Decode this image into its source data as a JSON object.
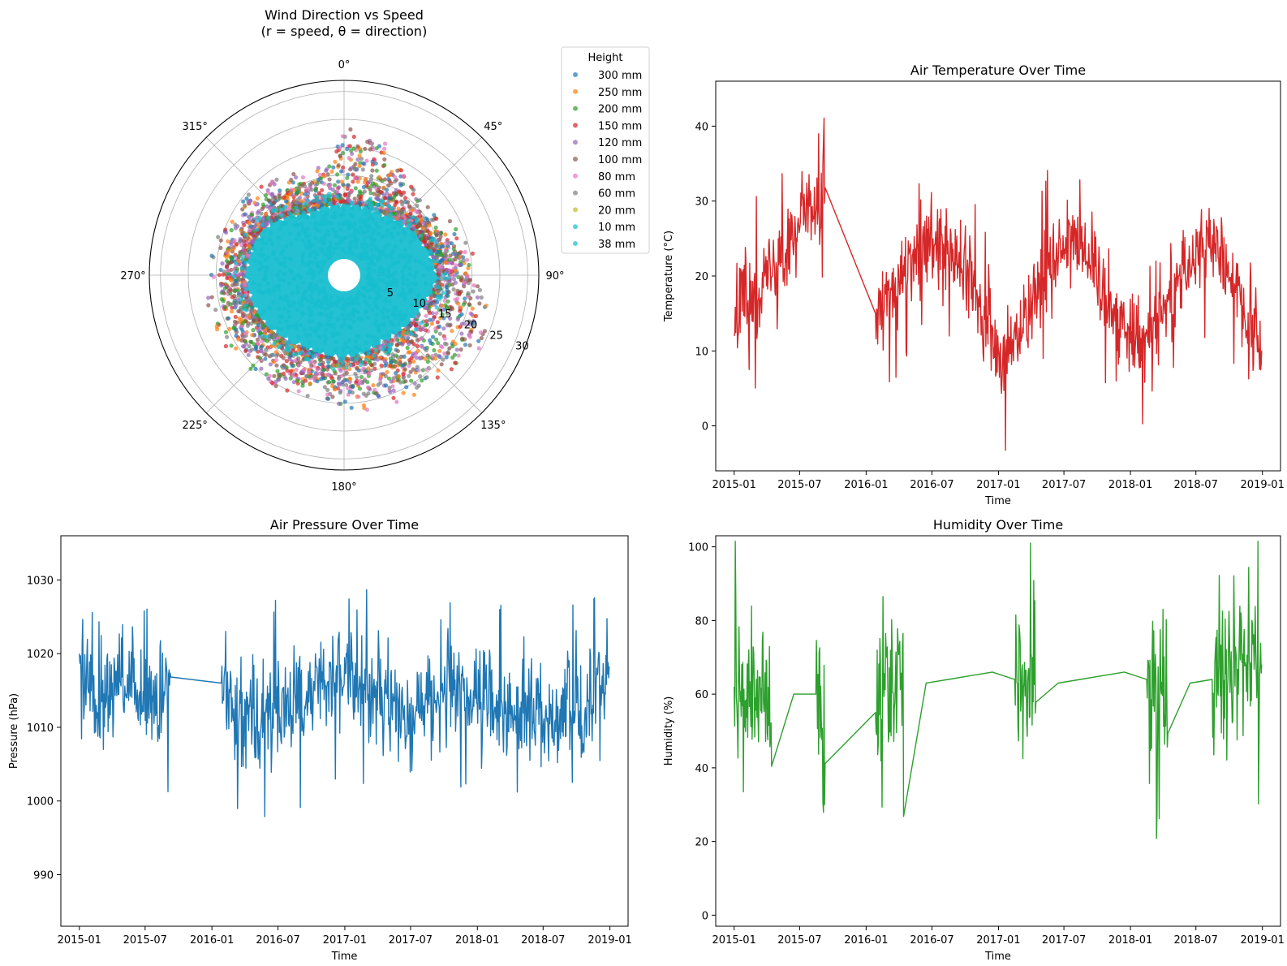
{
  "chart_data": [
    {
      "type": "scatter",
      "projection": "polar",
      "title": "Wind Direction vs Speed\n(r = speed, θ = direction)",
      "theta_direction": "clockwise",
      "theta_zero": "north",
      "theta_ticks": [
        "0°",
        "45°",
        "90°",
        "135°",
        "180°",
        "225°",
        "270°",
        "315°"
      ],
      "r_ticks": [
        "5",
        "10",
        "15",
        "20",
        "25",
        "30"
      ],
      "rlim": [
        -3,
        32
      ],
      "legend": {
        "title": "Height",
        "placement": "upper right, outside axes",
        "entries": [
          "300 mm",
          "250 mm",
          "200 mm",
          "150 mm",
          "120 mm",
          "100 mm",
          "80 mm",
          "60 mm",
          "20 mm",
          "10 mm",
          "38 mm"
        ]
      },
      "series": [
        {
          "name": "300 mm",
          "color": "#1f77b4"
        },
        {
          "name": "250 mm",
          "color": "#ff7f0e"
        },
        {
          "name": "200 mm",
          "color": "#2ca02c"
        },
        {
          "name": "150 mm",
          "color": "#d62728"
        },
        {
          "name": "120 mm",
          "color": "#9467bd"
        },
        {
          "name": "100 mm",
          "color": "#8c564b"
        },
        {
          "name": "80 mm",
          "color": "#e377c2"
        },
        {
          "name": "60 mm",
          "color": "#7f7f7f"
        },
        {
          "name": "20 mm",
          "color": "#bcbd22"
        },
        {
          "name": "10 mm",
          "color": "#17becf"
        },
        {
          "name": "38 mm",
          "color": "#17becf"
        }
      ],
      "envelope_max_speed": [
        {
          "deg": 0,
          "speed": 20
        },
        {
          "deg": 10,
          "speed": 21
        },
        {
          "deg": 20,
          "speed": 18
        },
        {
          "deg": 30,
          "speed": 16
        },
        {
          "deg": 45,
          "speed": 14
        },
        {
          "deg": 60,
          "speed": 15
        },
        {
          "deg": 75,
          "speed": 17
        },
        {
          "deg": 90,
          "speed": 19
        },
        {
          "deg": 105,
          "speed": 21
        },
        {
          "deg": 120,
          "speed": 22
        },
        {
          "deg": 135,
          "speed": 19
        },
        {
          "deg": 150,
          "speed": 19
        },
        {
          "deg": 165,
          "speed": 19
        },
        {
          "deg": 180,
          "speed": 18
        },
        {
          "deg": 195,
          "speed": 17
        },
        {
          "deg": 210,
          "speed": 18
        },
        {
          "deg": 225,
          "speed": 18
        },
        {
          "deg": 240,
          "speed": 19
        },
        {
          "deg": 255,
          "speed": 19
        },
        {
          "deg": 270,
          "speed": 19
        },
        {
          "deg": 285,
          "speed": 18
        },
        {
          "deg": 300,
          "speed": 17
        },
        {
          "deg": 315,
          "speed": 17
        },
        {
          "deg": 330,
          "speed": 15
        },
        {
          "deg": 345,
          "speed": 14
        }
      ],
      "core_speed": [
        {
          "deg": 0,
          "speed": 10
        },
        {
          "deg": 30,
          "speed": 10
        },
        {
          "deg": 60,
          "speed": 12
        },
        {
          "deg": 90,
          "speed": 14
        },
        {
          "deg": 120,
          "speed": 12
        },
        {
          "deg": 150,
          "speed": 11
        },
        {
          "deg": 180,
          "speed": 12
        },
        {
          "deg": 210,
          "speed": 12
        },
        {
          "deg": 240,
          "speed": 14
        },
        {
          "deg": 270,
          "speed": 15
        },
        {
          "deg": 300,
          "speed": 14
        },
        {
          "deg": 330,
          "speed": 10
        }
      ]
    },
    {
      "type": "line",
      "title": "Air Temperature Over Time",
      "xlabel": "Time",
      "ylabel": "Temperature (°C)",
      "color": "#d62728",
      "x_ticks": [
        "2015-01",
        "2015-07",
        "2016-01",
        "2016-07",
        "2017-01",
        "2017-07",
        "2018-01",
        "2018-07",
        "2019-01"
      ],
      "y_ticks": [
        "0",
        "10",
        "20",
        "30",
        "40"
      ],
      "xlim": [
        "2014-11-11",
        "2019-02-20"
      ],
      "ylim": [
        -6,
        46
      ],
      "series": [
        {
          "points": [
            [
              "2015-01-01",
              12
            ],
            [
              "2015-01-20",
              18
            ],
            [
              "2015-02-15",
              17
            ],
            [
              "2015-03-15",
              19
            ],
            [
              "2015-04-15",
              21
            ],
            [
              "2015-05-15",
              24
            ],
            [
              "2015-06-15",
              27
            ],
            [
              "2015-07-15",
              28
            ],
            [
              "2015-08-15",
              30
            ],
            [
              "2015-09-05",
              28
            ],
            [
              "2015-09-10",
              34
            ],
            [
              "2016-01-27",
              15
            ],
            [
              "2016-03-01",
              17
            ],
            [
              "2016-04-01",
              18
            ],
            [
              "2016-05-01",
              21
            ],
            [
              "2016-06-01",
              23
            ],
            [
              "2016-07-15",
              24
            ],
            [
              "2016-08-15",
              23
            ],
            [
              "2016-09-15",
              22
            ],
            [
              "2016-10-15",
              19
            ],
            [
              "2016-11-15",
              15
            ],
            [
              "2016-12-15",
              11
            ],
            [
              "2017-01-10",
              8
            ],
            [
              "2017-02-10",
              11
            ],
            [
              "2017-03-15",
              15
            ],
            [
              "2017-04-15",
              18
            ],
            [
              "2017-05-15",
              21
            ],
            [
              "2017-06-15",
              24
            ],
            [
              "2017-07-15",
              26
            ],
            [
              "2017-08-15",
              24
            ],
            [
              "2017-09-15",
              22
            ],
            [
              "2017-10-15",
              19
            ],
            [
              "2017-11-15",
              15
            ],
            [
              "2017-12-15",
              13
            ],
            [
              "2018-01-15",
              12
            ],
            [
              "2018-02-15",
              12
            ],
            [
              "2018-03-15",
              14
            ],
            [
              "2018-04-15",
              17
            ],
            [
              "2018-05-15",
              20
            ],
            [
              "2018-06-15",
              22
            ],
            [
              "2018-07-15",
              24
            ],
            [
              "2018-08-15",
              24
            ],
            [
              "2018-09-15",
              22
            ],
            [
              "2018-10-05",
              20
            ],
            [
              "2018-10-20",
              18
            ],
            [
              "2018-11-15",
              14
            ],
            [
              "2018-12-15",
              11
            ],
            [
              "2018-12-31",
              9
            ]
          ],
          "amplitude": 5
        }
      ]
    },
    {
      "type": "line",
      "title": "Air Pressure Over Time",
      "xlabel": "Time",
      "ylabel": "Pressure (hPa)",
      "color": "#1f77b4",
      "x_ticks": [
        "2015-01",
        "2015-07",
        "2016-01",
        "2016-07",
        "2017-01",
        "2017-07",
        "2018-01",
        "2018-07",
        "2019-01"
      ],
      "y_ticks": [
        "990",
        "1000",
        "1010",
        "1020",
        "1030"
      ],
      "xlim": [
        "2014-11-11",
        "2019-02-20"
      ],
      "ylim": [
        983,
        1036
      ],
      "series": [
        {
          "points": [
            [
              "2015-01-01",
              1020
            ],
            [
              "2015-01-20",
              1018
            ],
            [
              "2015-02-15",
              1012
            ],
            [
              "2015-03-15",
              1015
            ],
            [
              "2015-04-15",
              1016
            ],
            [
              "2015-05-15",
              1015
            ],
            [
              "2015-06-15",
              1014
            ],
            [
              "2015-07-15",
              1013
            ],
            [
              "2015-08-15",
              1013
            ],
            [
              "2015-09-10",
              1016
            ],
            [
              "2016-01-27",
              1016
            ],
            [
              "2016-02-15",
              1015
            ],
            [
              "2016-03-15",
              1012
            ],
            [
              "2016-04-15",
              1012
            ],
            [
              "2016-05-15",
              1012
            ],
            [
              "2016-06-15",
              1012
            ],
            [
              "2016-07-15",
              1012
            ],
            [
              "2016-08-15",
              1013
            ],
            [
              "2016-09-15",
              1014
            ],
            [
              "2016-10-15",
              1016
            ],
            [
              "2016-11-15",
              1016
            ],
            [
              "2016-12-15",
              1018
            ],
            [
              "2017-01-15",
              1016
            ],
            [
              "2017-02-15",
              1015
            ],
            [
              "2017-03-15",
              1014
            ],
            [
              "2017-04-15",
              1013
            ],
            [
              "2017-05-15",
              1013
            ],
            [
              "2017-06-15",
              1012
            ],
            [
              "2017-07-15",
              1012
            ],
            [
              "2017-08-15",
              1013
            ],
            [
              "2017-09-15",
              1014
            ],
            [
              "2017-10-15",
              1015
            ],
            [
              "2017-11-15",
              1014
            ],
            [
              "2017-12-15",
              1013
            ],
            [
              "2018-01-15",
              1014
            ],
            [
              "2018-02-15",
              1013
            ],
            [
              "2018-03-15",
              1012
            ],
            [
              "2018-04-15",
              1012
            ],
            [
              "2018-05-15",
              1013
            ],
            [
              "2018-06-15",
              1012
            ],
            [
              "2018-07-15",
              1012
            ],
            [
              "2018-08-15",
              1012
            ],
            [
              "2018-09-15",
              1013
            ],
            [
              "2018-10-05",
              1012
            ],
            [
              "2018-10-20",
              1010
            ],
            [
              "2018-11-15",
              1015
            ],
            [
              "2018-12-15",
              1017
            ],
            [
              "2018-12-31",
              1018
            ]
          ],
          "amplitude": 6
        }
      ]
    },
    {
      "type": "line",
      "title": "Humidity Over Time",
      "xlabel": "Time",
      "ylabel": "Humidity (%)",
      "color": "#2ca02c",
      "x_ticks": [
        "2015-01",
        "2015-07",
        "2016-01",
        "2016-07",
        "2017-01",
        "2017-07",
        "2018-01",
        "2018-07",
        "2019-01"
      ],
      "y_ticks": [
        "0",
        "20",
        "40",
        "60",
        "80",
        "100"
      ],
      "xlim": [
        "2014-11-11",
        "2019-02-20"
      ],
      "ylim": [
        -3,
        103
      ],
      "series": [
        {
          "points": [
            [
              "2015-01-01",
              62
            ],
            [
              "2015-02-15",
              62
            ],
            [
              "2015-04-15",
              62
            ],
            [
              "2015-06-15",
              60
            ],
            [
              "2015-08-15",
              60
            ],
            [
              "2015-09-10",
              42
            ],
            [
              "2016-01-27",
              55
            ],
            [
              "2016-02-15",
              66
            ],
            [
              "2016-04-15",
              64
            ],
            [
              "2016-06-15",
              63
            ],
            [
              "2016-08-15",
              64
            ],
            [
              "2016-10-15",
              65
            ],
            [
              "2016-12-15",
              66
            ],
            [
              "2017-02-15",
              64
            ],
            [
              "2017-04-15",
              62
            ],
            [
              "2017-06-15",
              63
            ],
            [
              "2017-08-15",
              64
            ],
            [
              "2017-10-15",
              65
            ],
            [
              "2017-12-15",
              66
            ],
            [
              "2018-02-15",
              64
            ],
            [
              "2018-04-15",
              63
            ],
            [
              "2018-06-15",
              63
            ],
            [
              "2018-08-15",
              64
            ],
            [
              "2018-10-05",
              66
            ],
            [
              "2018-10-20",
              72
            ],
            [
              "2018-11-15",
              68
            ],
            [
              "2018-12-31",
              70
            ]
          ],
          "amplitude": 18
        }
      ]
    }
  ]
}
